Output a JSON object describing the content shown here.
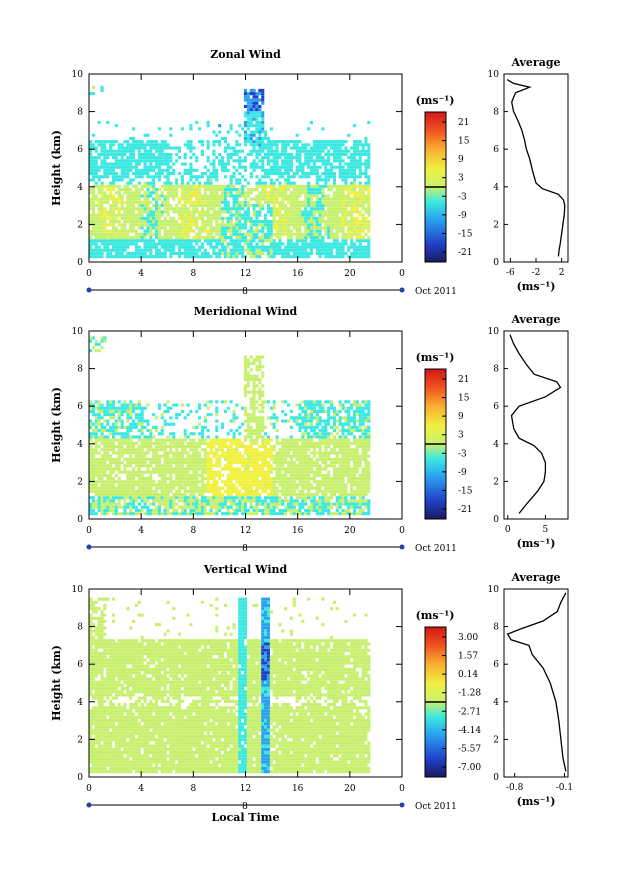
{
  "chart_data": [
    {
      "type": "heatmap",
      "title": "Zonal Wind",
      "ylabel": "Height (km)",
      "xlabel": "",
      "xlim": [
        0,
        24
      ],
      "ylim": [
        0,
        10
      ],
      "x_ticks": [
        "0",
        "4",
        "8",
        "12",
        "16",
        "20",
        "0"
      ],
      "y_ticks": [
        "0",
        "2",
        "4",
        "6",
        "8",
        "10"
      ],
      "date_marker": "8",
      "date_label": "Oct 2011",
      "colorbar": {
        "unit": "(ms⁻¹)",
        "labels": [
          "21",
          "15",
          "9",
          "3",
          "-3",
          "-9",
          "-15",
          "-21"
        ],
        "range": [
          -24,
          24
        ]
      },
      "average": {
        "title": "Average",
        "xlabel": "(ms⁻¹)",
        "x_ticks": [
          "-6",
          "-2",
          "2"
        ],
        "xlim": [
          -7,
          3
        ],
        "y_ticks": [
          "0",
          "2",
          "4",
          "6",
          "8",
          "10"
        ],
        "ylim": [
          0,
          10
        ],
        "profile": [
          [
            1.5,
            0.3
          ],
          [
            1.6,
            0.6
          ],
          [
            1.8,
            1.0
          ],
          [
            2.0,
            1.5
          ],
          [
            2.2,
            2.0
          ],
          [
            2.4,
            2.5
          ],
          [
            2.5,
            3.0
          ],
          [
            2.3,
            3.3
          ],
          [
            1.5,
            3.6
          ],
          [
            -1.0,
            3.9
          ],
          [
            -2.0,
            4.2
          ],
          [
            -2.5,
            4.8
          ],
          [
            -3.0,
            5.5
          ],
          [
            -3.5,
            6.0
          ],
          [
            -3.8,
            6.5
          ],
          [
            -4.2,
            7.0
          ],
          [
            -4.8,
            7.5
          ],
          [
            -5.5,
            8.0
          ],
          [
            -5.8,
            8.5
          ],
          [
            -5.2,
            9.0
          ],
          [
            -3.0,
            9.3
          ],
          [
            -5.5,
            9.5
          ],
          [
            -6.5,
            9.7
          ]
        ]
      },
      "series": [
        {
          "name": "",
          "data_rows": [
            [
              4,
              8,
              0.4,
              3.0,
              2
            ],
            [
              10,
              14,
              1.0,
              4.5,
              1
            ],
            [
              0,
              24,
              0.4,
              4.0,
              0
            ],
            [
              1,
              6,
              4.5,
              6.5,
              -1
            ],
            [
              14,
              24,
              4.5,
              6.2,
              -1
            ],
            [
              12,
              13.5,
              6.0,
              8.5,
              -2
            ]
          ]
        }
      ]
    },
    {
      "type": "heatmap",
      "title": "Meridional Wind",
      "ylabel": "Height (km)",
      "xlabel": "",
      "xlim": [
        0,
        24
      ],
      "ylim": [
        0,
        10
      ],
      "x_ticks": [
        "0",
        "4",
        "8",
        "12",
        "16",
        "20",
        "0"
      ],
      "y_ticks": [
        "0",
        "2",
        "4",
        "6",
        "8",
        "10"
      ],
      "date_marker": "8",
      "date_label": "Oct 2011",
      "colorbar": {
        "unit": "(ms⁻¹)",
        "labels": [
          "21",
          "15",
          "9",
          "3",
          "-3",
          "-9",
          "-15",
          "-21"
        ],
        "range": [
          -24,
          24
        ]
      },
      "average": {
        "title": "Average",
        "xlabel": "(ms⁻¹)",
        "x_ticks": [
          "0",
          "5"
        ],
        "xlim": [
          -0.5,
          8
        ],
        "y_ticks": [
          "0",
          "2",
          "4",
          "6",
          "8",
          "10"
        ],
        "ylim": [
          0,
          10
        ],
        "profile": [
          [
            1.5,
            0.3
          ],
          [
            2.5,
            0.8
          ],
          [
            4.0,
            1.5
          ],
          [
            4.8,
            2.0
          ],
          [
            5.0,
            2.5
          ],
          [
            5.0,
            3.0
          ],
          [
            4.5,
            3.5
          ],
          [
            3.5,
            3.9
          ],
          [
            1.5,
            4.3
          ],
          [
            0.8,
            4.8
          ],
          [
            0.5,
            5.5
          ],
          [
            1.5,
            6.0
          ],
          [
            5.0,
            6.5
          ],
          [
            7.0,
            7.0
          ],
          [
            6.5,
            7.3
          ],
          [
            3.5,
            7.7
          ],
          [
            2.5,
            8.2
          ],
          [
            1.5,
            8.8
          ],
          [
            0.8,
            9.3
          ],
          [
            0.3,
            9.8
          ]
        ]
      }
    },
    {
      "type": "heatmap",
      "title": "Vertical Wind",
      "ylabel": "Height (km)",
      "xlabel": "Local Time",
      "xlim": [
        0,
        24
      ],
      "ylim": [
        0,
        10
      ],
      "x_ticks": [
        "0",
        "4",
        "8",
        "12",
        "16",
        "20",
        "0"
      ],
      "y_ticks": [
        "0",
        "2",
        "4",
        "6",
        "8",
        "10"
      ],
      "date_marker": "8",
      "date_label": "Oct 2011",
      "colorbar": {
        "unit": "(ms⁻¹)",
        "labels": [
          "3.00",
          "1.57",
          "0.14",
          "-1.28",
          "-2.71",
          "-4.14",
          "-5.57",
          "-7.00"
        ],
        "range": [
          -8,
          4
        ]
      },
      "average": {
        "title": "Average",
        "xlabel": "(ms⁻¹)",
        "x_ticks": [
          "-0.8",
          "-0.1"
        ],
        "xlim": [
          -0.95,
          -0.05
        ],
        "y_ticks": [
          "0",
          "2",
          "4",
          "6",
          "8",
          "10"
        ],
        "ylim": [
          0,
          10
        ],
        "profile": [
          [
            -0.08,
            0.3
          ],
          [
            -0.12,
            1.0
          ],
          [
            -0.15,
            2.0
          ],
          [
            -0.18,
            3.0
          ],
          [
            -0.22,
            4.0
          ],
          [
            -0.3,
            5.0
          ],
          [
            -0.4,
            5.8
          ],
          [
            -0.55,
            6.5
          ],
          [
            -0.6,
            7.0
          ],
          [
            -0.85,
            7.3
          ],
          [
            -0.9,
            7.6
          ],
          [
            -0.7,
            7.9
          ],
          [
            -0.4,
            8.3
          ],
          [
            -0.2,
            8.8
          ],
          [
            -0.15,
            9.3
          ],
          [
            -0.08,
            9.8
          ]
        ]
      }
    }
  ]
}
